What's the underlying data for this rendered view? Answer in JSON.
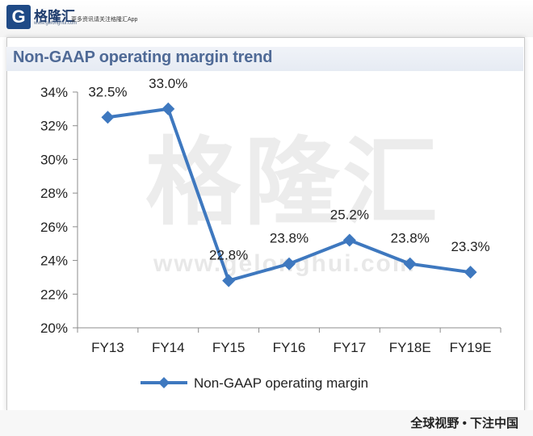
{
  "header": {
    "logo_mark": "G",
    "logo_text": "格隆汇",
    "logo_url": "www.gelonghui.com",
    "slogan": "更多资讯请关注格隆汇App"
  },
  "watermark": {
    "text": "格隆汇",
    "url": "www.gelonghui.com"
  },
  "footer": {
    "text": "全球视野 • 下注中国"
  },
  "chart_data": {
    "type": "line",
    "title": "Non-GAAP operating margin trend",
    "categories": [
      "FY13",
      "FY14",
      "FY15",
      "FY16",
      "FY17",
      "FY18E",
      "FY19E"
    ],
    "series": [
      {
        "name": "Non-GAAP operating margin",
        "values": [
          32.5,
          33.0,
          22.8,
          23.8,
          25.2,
          23.8,
          23.3
        ],
        "labels": [
          "32.5%",
          "33.0%",
          "22.8%",
          "23.8%",
          "25.2%",
          "23.8%",
          "23.3%"
        ],
        "color": "#3e78bf"
      }
    ],
    "ylim": [
      20,
      34
    ],
    "yticks": [
      20,
      22,
      24,
      26,
      28,
      30,
      32,
      34
    ],
    "ytick_labels": [
      "20%",
      "22%",
      "24%",
      "26%",
      "28%",
      "30%",
      "32%",
      "34%"
    ],
    "legend_position": "bottom",
    "grid": false
  }
}
